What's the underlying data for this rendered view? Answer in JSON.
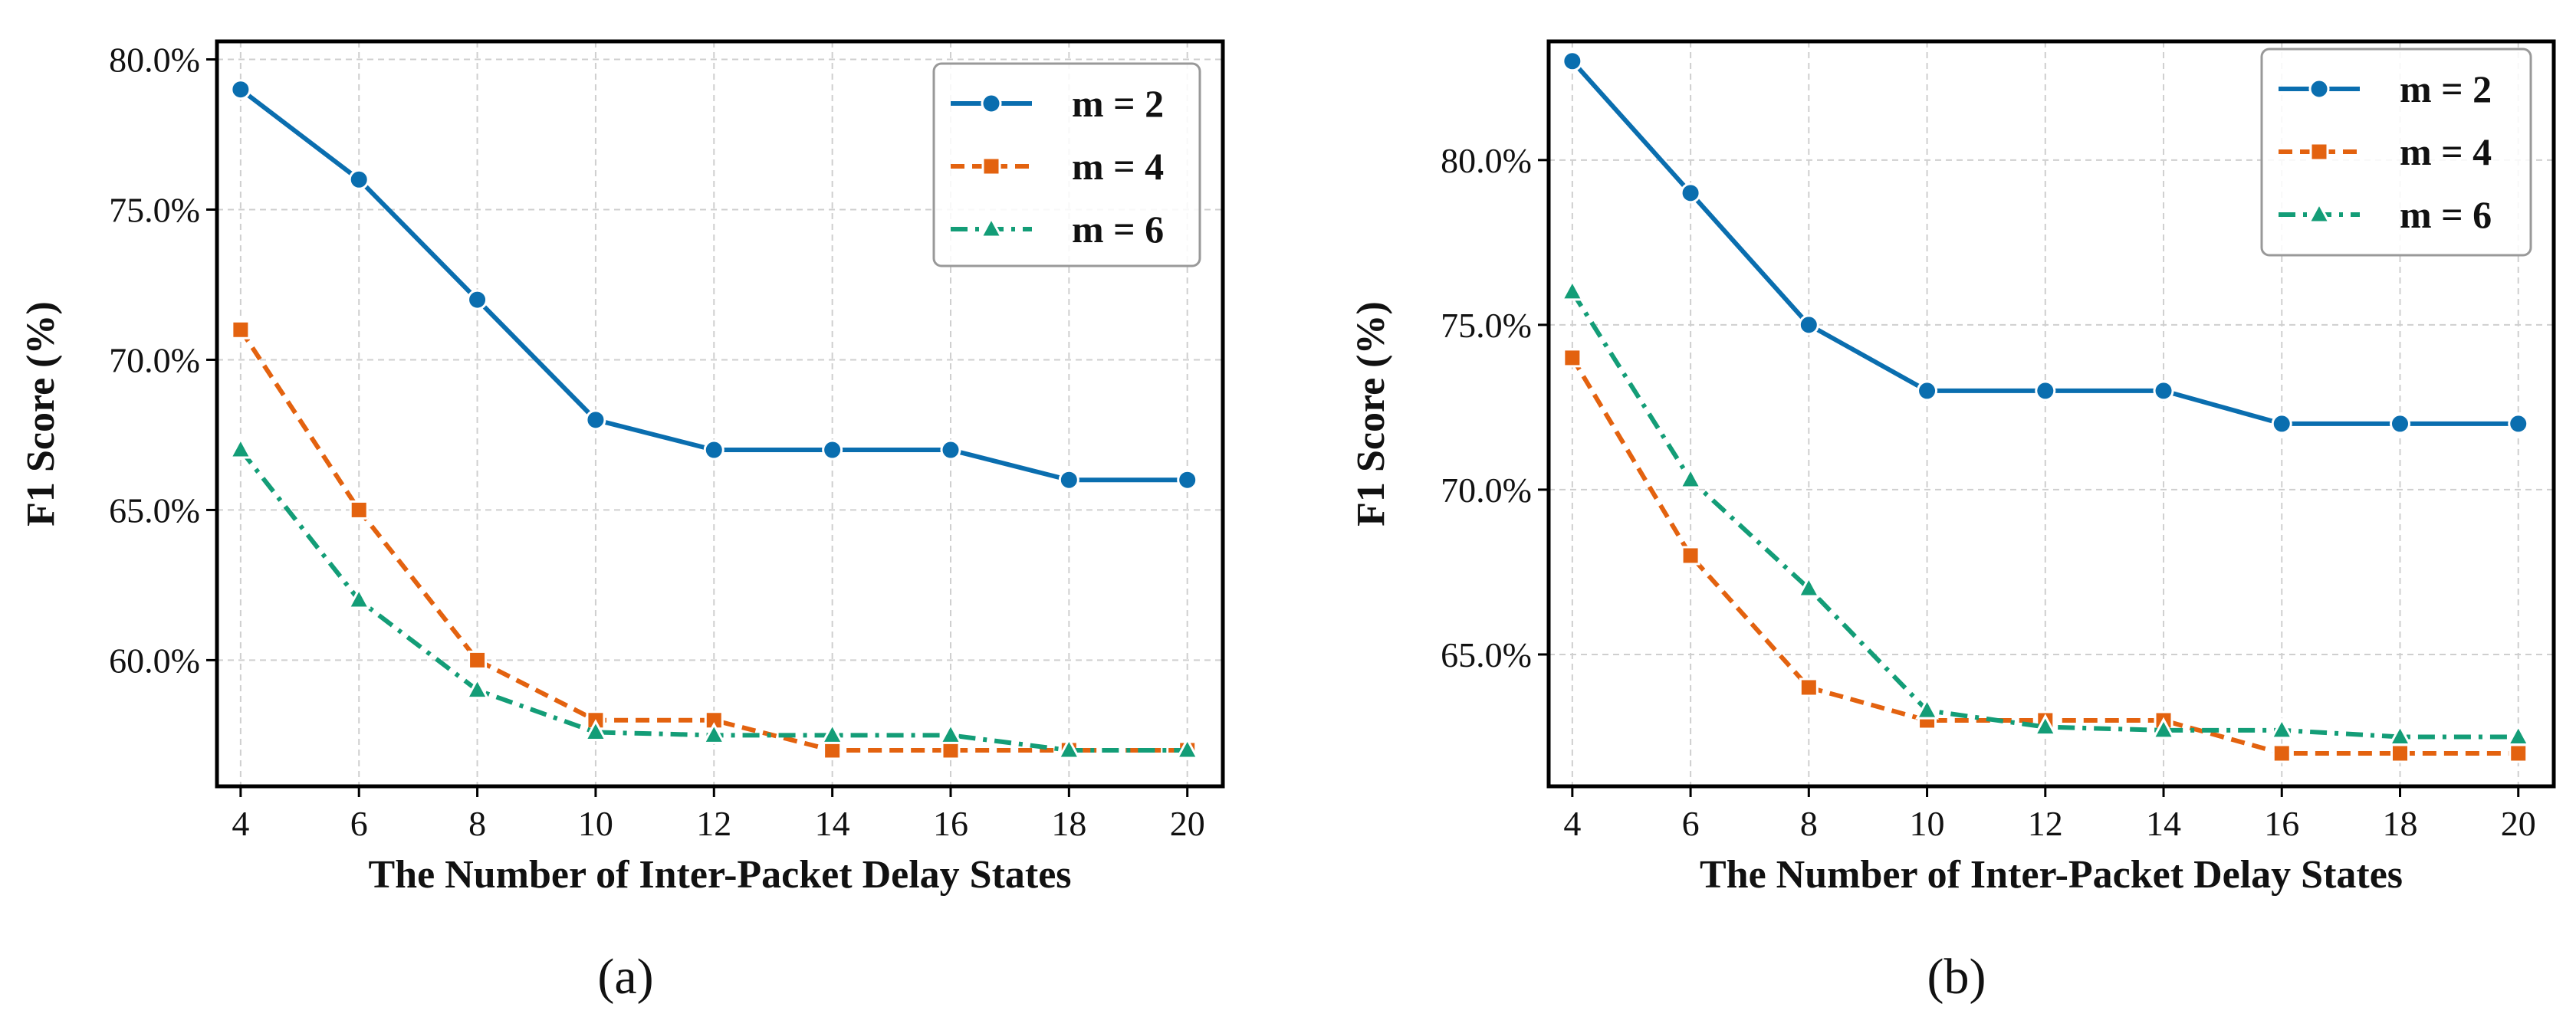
{
  "chart_data": [
    {
      "type": "line",
      "caption": "(a)",
      "xlabel": "The Number of Inter-Packet Delay States",
      "ylabel": "F1 Score (%)",
      "x": [
        4,
        6,
        8,
        10,
        12,
        14,
        16,
        18,
        20
      ],
      "xlim": [
        3.6,
        20.6
      ],
      "ylim": [
        55.8,
        80.6
      ],
      "yticks": [
        60,
        65,
        70,
        75,
        80
      ],
      "ytick_labels": [
        "60.0%",
        "65.0%",
        "70.0%",
        "75.0%",
        "80.0%"
      ],
      "legend_position": "top-right",
      "grid": true,
      "series": [
        {
          "name": "m = 2",
          "color": "#0a6eaf",
          "marker": "circle",
          "dash": "solid",
          "values": [
            79,
            76,
            72,
            68,
            67,
            67,
            67,
            66,
            66
          ]
        },
        {
          "name": "m = 4",
          "color": "#e3620f",
          "marker": "square",
          "dash": "dashed",
          "values": [
            71,
            65,
            60,
            58,
            58,
            57,
            57,
            57,
            57
          ]
        },
        {
          "name": "m = 6",
          "color": "#139d77",
          "marker": "triangle",
          "dash": "dashdot",
          "values": [
            67,
            62,
            59,
            57.6,
            57.5,
            57.5,
            57.5,
            57,
            57
          ]
        }
      ]
    },
    {
      "type": "line",
      "caption": "(b)",
      "xlabel": "The Number of Inter-Packet Delay States",
      "ylabel": "F1 Score (%)",
      "x": [
        4,
        6,
        8,
        10,
        12,
        14,
        16,
        18,
        20
      ],
      "xlim": [
        3.6,
        20.6
      ],
      "ylim": [
        61.0,
        83.6
      ],
      "yticks": [
        65,
        70,
        75,
        80
      ],
      "ytick_labels": [
        "65.0%",
        "70.0%",
        "75.0%",
        "80.0%"
      ],
      "legend_position": "top-right",
      "grid": true,
      "series": [
        {
          "name": "m = 2",
          "color": "#0a6eaf",
          "marker": "circle",
          "dash": "solid",
          "values": [
            83,
            79,
            75,
            73,
            73,
            73,
            72,
            72,
            72
          ]
        },
        {
          "name": "m = 4",
          "color": "#e3620f",
          "marker": "square",
          "dash": "dashed",
          "values": [
            74,
            68,
            64,
            63,
            63,
            63,
            62,
            62,
            62
          ]
        },
        {
          "name": "m = 6",
          "color": "#139d77",
          "marker": "triangle",
          "dash": "dashdot",
          "values": [
            76,
            70.3,
            67,
            63.3,
            62.8,
            62.7,
            62.7,
            62.5,
            62.5
          ]
        }
      ]
    }
  ]
}
